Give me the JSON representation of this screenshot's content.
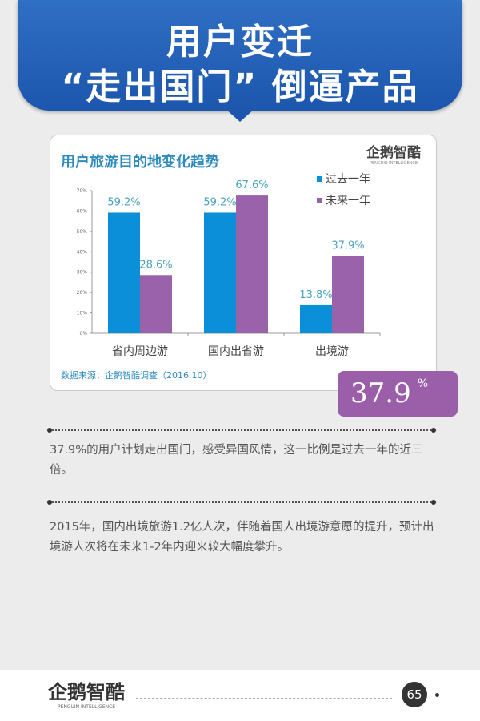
{
  "header": {
    "title_line1": "用户变迁",
    "title_line2": "“走出国门” 倒逼产品"
  },
  "card": {
    "logo": "企鹅智酷",
    "logo_sub": "PENGUIN INTELLIGENCE",
    "source": "数据来源：企鹅智酷调查（2016.10）"
  },
  "highlight": {
    "value": "37.9",
    "unit": "%"
  },
  "paragraphs": [
    "37.9%的用户计划走出国门，感受异国风情，这一比例是过去一年的近三倍。",
    "2015年，国内出境旅游1.2亿人次，伴随着国人出境游意愿的提升，预计出境游人次将在未来1-2年内迎来较大幅度攀升。"
  ],
  "footer": {
    "logo": "企鹅智酷",
    "logo_sub": "—PENGUIN INTELLIGENCE—",
    "page": "65"
  },
  "chart_data": {
    "type": "bar",
    "title": "用户旅游目的地变化趋势",
    "categories": [
      "省内周边游",
      "国内出省游",
      "出境游"
    ],
    "series": [
      {
        "name": "过去一年",
        "values": [
          59.2,
          59.2,
          13.8
        ],
        "labels": [
          "59.2%",
          "59.2%",
          "13.8%"
        ],
        "color": "#0a8fd8"
      },
      {
        "name": "未来一年",
        "values": [
          28.6,
          67.6,
          37.9
        ],
        "labels": [
          "28.6%",
          "67.6%",
          "37.9%"
        ],
        "color": "#9a62aa"
      }
    ],
    "yticks": [
      "0%",
      "10%",
      "20%",
      "30%",
      "40%",
      "50%",
      "60%",
      "70%"
    ],
    "ylim": [
      0,
      70
    ],
    "legend": "top-right",
    "label_color": "#4aa3b8"
  }
}
